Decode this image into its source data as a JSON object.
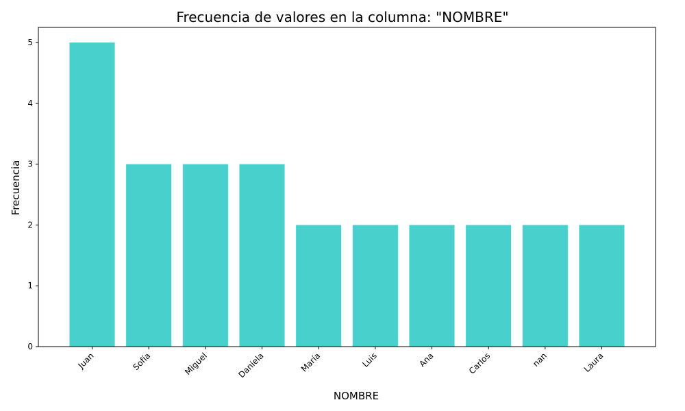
{
  "chart_data": {
    "type": "bar",
    "title": "Frecuencia de valores en la columna: \"NOMBRE\"",
    "xlabel": "NOMBRE",
    "ylabel": "Frecuencia",
    "categories": [
      "Juan",
      "Sofía",
      "Miguel",
      "Daniela",
      "María",
      "Luis",
      "Ana",
      "Carlos",
      "nan",
      "Laura"
    ],
    "values": [
      5,
      3,
      3,
      3,
      2,
      2,
      2,
      2,
      2,
      2
    ],
    "ylim": [
      0,
      5.25
    ],
    "yticks": [
      0,
      1,
      2,
      3,
      4,
      5
    ],
    "bar_color": "#48d1cc",
    "grid": false,
    "legend": "none"
  }
}
